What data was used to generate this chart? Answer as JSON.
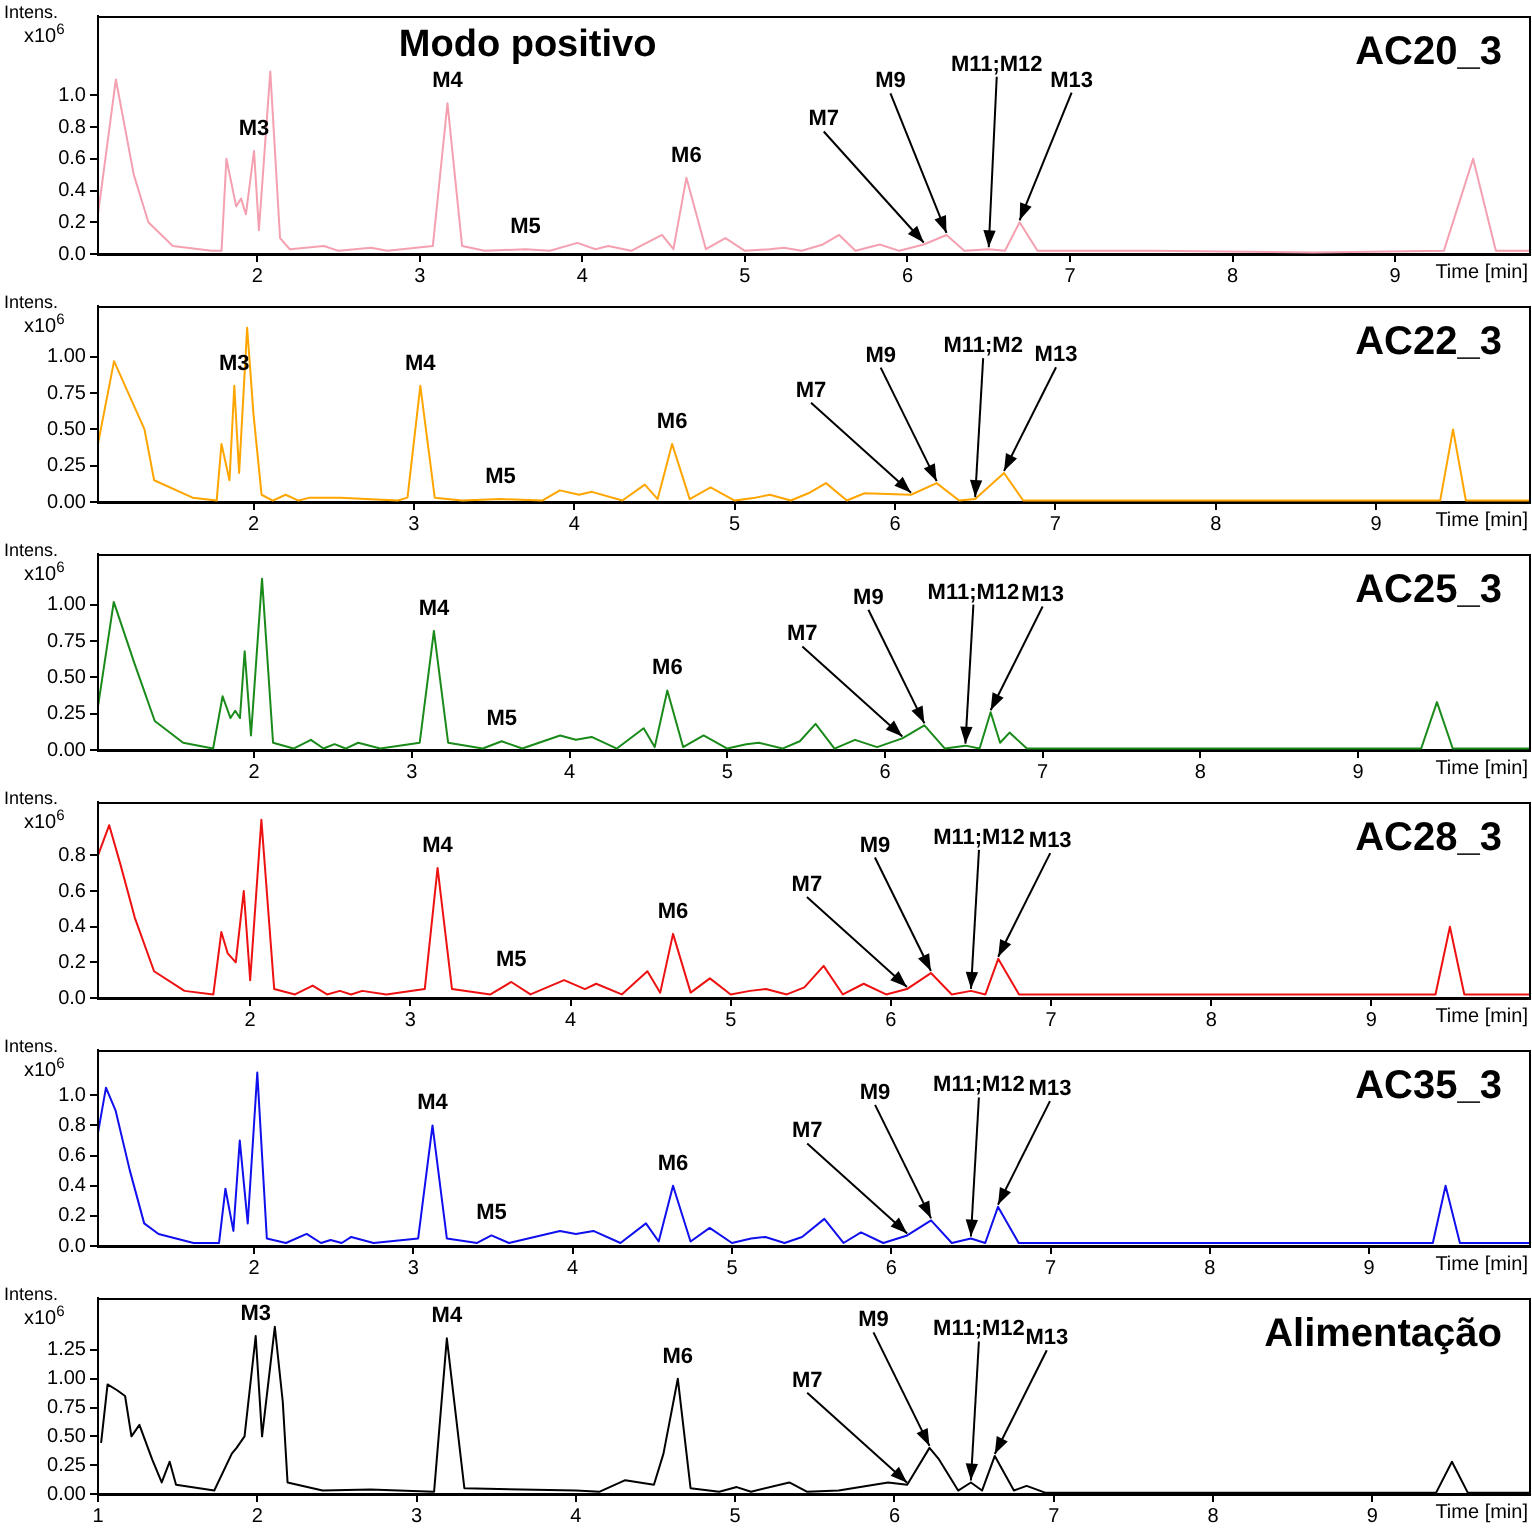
{
  "chart_data": [
    {
      "type": "line",
      "title": "AC20_3",
      "subtitle": "Modo positivo",
      "xlabel": "Time [min]",
      "ylabel": "Intens. x10$^{6}$",
      "color": "#f4a0b0",
      "x": [
        1.02,
        1.13,
        1.24,
        1.33,
        1.48,
        1.72,
        1.78,
        1.81,
        1.87,
        1.9,
        1.93,
        1.98,
        2.01,
        2.08,
        2.14,
        2.2,
        2.41,
        2.5,
        2.7,
        2.8,
        3.08,
        3.17,
        3.26,
        3.4,
        3.65,
        3.8,
        3.97,
        4.08,
        4.16,
        4.3,
        4.49,
        4.56,
        4.64,
        4.76,
        4.88,
        5.0,
        5.15,
        5.24,
        5.35,
        5.48,
        5.58,
        5.68,
        5.83,
        5.95,
        6.1,
        6.24,
        6.35,
        6.5,
        6.6,
        6.69,
        6.8,
        7.5,
        8.5,
        9.3,
        9.48,
        9.62,
        9.83
      ],
      "values": [
        0.25,
        1.1,
        0.5,
        0.2,
        0.05,
        0.02,
        0.02,
        0.6,
        0.3,
        0.35,
        0.25,
        0.65,
        0.15,
        1.15,
        0.1,
        0.03,
        0.05,
        0.02,
        0.04,
        0.02,
        0.05,
        0.95,
        0.05,
        0.02,
        0.03,
        0.02,
        0.07,
        0.03,
        0.05,
        0.02,
        0.12,
        0.03,
        0.48,
        0.03,
        0.1,
        0.02,
        0.03,
        0.04,
        0.02,
        0.06,
        0.12,
        0.02,
        0.06,
        0.02,
        0.06,
        0.12,
        0.02,
        0.03,
        0.02,
        0.2,
        0.02,
        0.02,
        0.01,
        0.02,
        0.6,
        0.02,
        0.02
      ],
      "xlim": [
        1.02,
        9.83
      ],
      "xticks": [
        2,
        3,
        4,
        5,
        6,
        7,
        8,
        9
      ],
      "ylim": [
        0,
        1.5
      ],
      "yticks": [
        {
          "value": 0,
          "label": "0.0"
        },
        {
          "value": 0.2,
          "label": "0.2"
        },
        {
          "value": 0.4,
          "label": "0.4"
        },
        {
          "value": 0.6,
          "label": "0.6"
        },
        {
          "value": 0.8,
          "label": "0.8"
        },
        {
          "value": 1,
          "label": "1.0"
        }
      ],
      "annotations": [
        {
          "text": "M3",
          "x": 1.98,
          "y": 0.65
        },
        {
          "text": "M4",
          "x": 3.17,
          "y": 0.95
        },
        {
          "text": "M5",
          "x": 3.65,
          "y": 0.03
        },
        {
          "text": "M6",
          "x": 4.64,
          "y": 0.48
        },
        {
          "text": "M7",
          "x": 6.1,
          "y": 0.06
        },
        {
          "text": "M9",
          "x": 6.24,
          "y": 0.12
        },
        {
          "text": "M11;M12",
          "x": 6.5,
          "y": 0.03
        },
        {
          "text": "M13",
          "x": 6.69,
          "y": 0.2
        }
      ]
    },
    {
      "type": "line",
      "title": "AC22_3",
      "xlabel": "Time [min]",
      "ylabel": "Intens. x10$^{6}$",
      "color": "#ffa500",
      "x": [
        1.03,
        1.13,
        1.32,
        1.38,
        1.62,
        1.77,
        1.8,
        1.85,
        1.88,
        1.91,
        1.96,
        2.0,
        2.05,
        2.12,
        2.2,
        2.28,
        2.35,
        2.54,
        2.9,
        2.96,
        3.04,
        3.13,
        3.3,
        3.54,
        3.8,
        3.91,
        4.03,
        4.11,
        4.3,
        4.44,
        4.52,
        4.61,
        4.72,
        4.85,
        5.0,
        5.13,
        5.22,
        5.35,
        5.46,
        5.57,
        5.7,
        5.81,
        6.1,
        6.26,
        6.4,
        6.5,
        6.68,
        6.8,
        7.5,
        8.5,
        9.4,
        9.48,
        9.56,
        9.96
      ],
      "values": [
        0.4,
        0.97,
        0.5,
        0.15,
        0.03,
        0.01,
        0.4,
        0.15,
        0.8,
        0.2,
        1.2,
        0.6,
        0.05,
        0.01,
        0.05,
        0.01,
        0.03,
        0.03,
        0.01,
        0.03,
        0.8,
        0.03,
        0.01,
        0.02,
        0.01,
        0.08,
        0.05,
        0.07,
        0.01,
        0.12,
        0.02,
        0.4,
        0.02,
        0.1,
        0.01,
        0.03,
        0.05,
        0.01,
        0.06,
        0.13,
        0.01,
        0.06,
        0.05,
        0.13,
        0.01,
        0.02,
        0.2,
        0.01,
        0.01,
        0.01,
        0.01,
        0.5,
        0.01,
        0.01
      ],
      "xlim": [
        1.03,
        9.96
      ],
      "xticks": [
        2,
        3,
        4,
        5,
        6,
        7,
        8,
        9
      ],
      "ylim": [
        0,
        1.35
      ],
      "yticks": [
        {
          "value": 0,
          "label": "0.00"
        },
        {
          "value": 0.25,
          "label": "0.25"
        },
        {
          "value": 0.5,
          "label": "0.50"
        },
        {
          "value": 0.75,
          "label": "0.75"
        },
        {
          "value": 1,
          "label": "1.00"
        }
      ],
      "annotations": [
        {
          "text": "M3",
          "x": 1.88,
          "y": 0.8
        },
        {
          "text": "M4",
          "x": 3.04,
          "y": 0.8
        },
        {
          "text": "M5",
          "x": 3.54,
          "y": 0.02
        },
        {
          "text": "M6",
          "x": 4.61,
          "y": 0.4
        },
        {
          "text": "M7",
          "x": 6.1,
          "y": 0.05
        },
        {
          "text": "M9",
          "x": 6.26,
          "y": 0.13
        },
        {
          "text": "M11;M2",
          "x": 6.5,
          "y": 0.02
        },
        {
          "text": "M13",
          "x": 6.68,
          "y": 0.2
        }
      ]
    },
    {
      "type": "line",
      "title": "AC25_3",
      "xlabel": "Time [min]",
      "ylabel": "Intens. x10$^{6}$",
      "color": "#1a8a1a",
      "x": [
        1.01,
        1.11,
        1.24,
        1.37,
        1.55,
        1.74,
        1.8,
        1.85,
        1.88,
        1.91,
        1.94,
        1.98,
        2.05,
        2.12,
        2.25,
        2.36,
        2.44,
        2.51,
        2.58,
        2.66,
        2.8,
        3.05,
        3.14,
        3.23,
        3.45,
        3.57,
        3.7,
        3.94,
        4.04,
        4.14,
        4.3,
        4.47,
        4.54,
        4.62,
        4.72,
        4.85,
        5.0,
        5.12,
        5.2,
        5.35,
        5.46,
        5.56,
        5.68,
        5.81,
        5.95,
        6.11,
        6.25,
        6.38,
        6.51,
        6.6,
        6.67,
        6.73,
        6.79,
        6.9,
        7.8,
        8.8,
        9.4,
        9.5,
        9.6,
        10.09
      ],
      "values": [
        0.3,
        1.02,
        0.6,
        0.2,
        0.05,
        0.01,
        0.37,
        0.22,
        0.27,
        0.22,
        0.68,
        0.1,
        1.18,
        0.05,
        0.01,
        0.07,
        0.01,
        0.04,
        0.01,
        0.05,
        0.01,
        0.05,
        0.82,
        0.05,
        0.01,
        0.06,
        0.01,
        0.1,
        0.07,
        0.09,
        0.01,
        0.15,
        0.02,
        0.41,
        0.02,
        0.1,
        0.01,
        0.04,
        0.05,
        0.01,
        0.06,
        0.18,
        0.01,
        0.07,
        0.02,
        0.08,
        0.17,
        0.01,
        0.03,
        0.01,
        0.26,
        0.05,
        0.12,
        0.01,
        0.01,
        0.01,
        0.01,
        0.33,
        0.01,
        0.01
      ],
      "xlim": [
        1.01,
        10.09
      ],
      "xticks": [
        2,
        3,
        4,
        5,
        6,
        7,
        8,
        9
      ],
      "ylim": [
        0,
        1.35
      ],
      "yticks": [
        {
          "value": 0,
          "label": "0.00"
        },
        {
          "value": 0.25,
          "label": "0.25"
        },
        {
          "value": 0.5,
          "label": "0.50"
        },
        {
          "value": 0.75,
          "label": "0.75"
        },
        {
          "value": 1,
          "label": "1.00"
        }
      ],
      "annotations": [
        {
          "text": "M4",
          "x": 3.14,
          "y": 0.82
        },
        {
          "text": "M5",
          "x": 3.57,
          "y": 0.06
        },
        {
          "text": "M6",
          "x": 4.62,
          "y": 0.41
        },
        {
          "text": "M7",
          "x": 6.11,
          "y": 0.08
        },
        {
          "text": "M9",
          "x": 6.25,
          "y": 0.17
        },
        {
          "text": "M11;M12",
          "x": 6.51,
          "y": 0.03
        },
        {
          "text": "M13",
          "x": 6.67,
          "y": 0.26
        }
      ]
    },
    {
      "type": "line",
      "title": "AC28_3",
      "xlabel": "Time [min]",
      "ylabel": "Intens. x10$^{6}$",
      "color": "#ee1111",
      "x": [
        1.05,
        1.12,
        1.19,
        1.28,
        1.4,
        1.59,
        1.77,
        1.82,
        1.86,
        1.91,
        1.96,
        2.0,
        2.07,
        2.15,
        2.28,
        2.39,
        2.48,
        2.56,
        2.63,
        2.7,
        2.85,
        3.09,
        3.17,
        3.26,
        3.5,
        3.63,
        3.75,
        3.96,
        4.09,
        4.16,
        4.32,
        4.48,
        4.56,
        4.64,
        4.75,
        4.87,
        5.0,
        5.12,
        5.22,
        5.35,
        5.46,
        5.58,
        5.7,
        5.83,
        5.97,
        6.1,
        6.25,
        6.38,
        6.5,
        6.59,
        6.67,
        6.8,
        7.8,
        8.8,
        9.4,
        9.49,
        9.58,
        9.99
      ],
      "values": [
        0.8,
        0.97,
        0.75,
        0.45,
        0.15,
        0.04,
        0.02,
        0.37,
        0.25,
        0.2,
        0.6,
        0.1,
        1.0,
        0.05,
        0.02,
        0.07,
        0.02,
        0.04,
        0.02,
        0.04,
        0.02,
        0.05,
        0.73,
        0.05,
        0.02,
        0.09,
        0.02,
        0.1,
        0.05,
        0.08,
        0.02,
        0.15,
        0.03,
        0.36,
        0.03,
        0.11,
        0.02,
        0.04,
        0.05,
        0.02,
        0.06,
        0.18,
        0.02,
        0.08,
        0.02,
        0.05,
        0.14,
        0.02,
        0.04,
        0.02,
        0.22,
        0.02,
        0.02,
        0.02,
        0.02,
        0.4,
        0.02,
        0.02
      ],
      "xlim": [
        1.05,
        9.99
      ],
      "xticks": [
        2,
        3,
        4,
        5,
        6,
        7,
        8,
        9
      ],
      "ylim": [
        0,
        1.1
      ],
      "yticks": [
        {
          "value": 0,
          "label": "0.0"
        },
        {
          "value": 0.2,
          "label": "0.2"
        },
        {
          "value": 0.4,
          "label": "0.4"
        },
        {
          "value": 0.6,
          "label": "0.6"
        },
        {
          "value": 0.8,
          "label": "0.8"
        }
      ],
      "annotations": [
        {
          "text": "M4",
          "x": 3.17,
          "y": 0.73
        },
        {
          "text": "M5",
          "x": 3.63,
          "y": 0.09
        },
        {
          "text": "M6",
          "x": 4.64,
          "y": 0.36
        },
        {
          "text": "M7",
          "x": 6.1,
          "y": 0.05
        },
        {
          "text": "M9",
          "x": 6.25,
          "y": 0.14
        },
        {
          "text": "M11;M12",
          "x": 6.5,
          "y": 0.04
        },
        {
          "text": "M13",
          "x": 6.67,
          "y": 0.22
        }
      ]
    },
    {
      "type": "line",
      "title": "AC35_3",
      "xlabel": "Time [min]",
      "ylabel": "Intens. x10$^{6}$",
      "color": "#1010ee",
      "x": [
        1.02,
        1.07,
        1.13,
        1.22,
        1.31,
        1.4,
        1.62,
        1.78,
        1.82,
        1.87,
        1.91,
        1.96,
        2.02,
        2.08,
        2.2,
        2.33,
        2.42,
        2.48,
        2.55,
        2.61,
        2.75,
        3.03,
        3.12,
        3.21,
        3.4,
        3.49,
        3.6,
        3.92,
        4.02,
        4.13,
        4.3,
        4.46,
        4.54,
        4.63,
        4.74,
        4.86,
        5.0,
        5.12,
        5.21,
        5.33,
        5.44,
        5.58,
        5.7,
        5.81,
        5.95,
        6.1,
        6.25,
        6.38,
        6.5,
        6.59,
        6.67,
        6.8,
        7.8,
        8.8,
        9.4,
        9.48,
        9.57,
        10.01
      ],
      "values": [
        0.75,
        1.05,
        0.9,
        0.5,
        0.15,
        0.08,
        0.02,
        0.02,
        0.38,
        0.1,
        0.7,
        0.15,
        1.15,
        0.05,
        0.02,
        0.08,
        0.02,
        0.04,
        0.02,
        0.06,
        0.02,
        0.05,
        0.8,
        0.05,
        0.02,
        0.07,
        0.02,
        0.1,
        0.08,
        0.1,
        0.02,
        0.15,
        0.03,
        0.4,
        0.03,
        0.12,
        0.02,
        0.05,
        0.06,
        0.02,
        0.06,
        0.18,
        0.02,
        0.09,
        0.02,
        0.07,
        0.17,
        0.02,
        0.05,
        0.02,
        0.26,
        0.02,
        0.02,
        0.02,
        0.02,
        0.4,
        0.02,
        0.02
      ],
      "xlim": [
        1.02,
        10.01
      ],
      "xticks": [
        2,
        3,
        4,
        5,
        6,
        7,
        8,
        9
      ],
      "ylim": [
        0,
        1.3
      ],
      "yticks": [
        {
          "value": 0,
          "label": "0.0"
        },
        {
          "value": 0.2,
          "label": "0.2"
        },
        {
          "value": 0.4,
          "label": "0.4"
        },
        {
          "value": 0.6,
          "label": "0.6"
        },
        {
          "value": 0.8,
          "label": "0.8"
        },
        {
          "value": 1,
          "label": "1.0"
        }
      ],
      "annotations": [
        {
          "text": "M4",
          "x": 3.12,
          "y": 0.8
        },
        {
          "text": "M5",
          "x": 3.49,
          "y": 0.07
        },
        {
          "text": "M6",
          "x": 4.63,
          "y": 0.4
        },
        {
          "text": "M7",
          "x": 6.1,
          "y": 0.07
        },
        {
          "text": "M9",
          "x": 6.25,
          "y": 0.17
        },
        {
          "text": "M11;M12",
          "x": 6.5,
          "y": 0.05
        },
        {
          "text": "M13",
          "x": 6.67,
          "y": 0.26
        }
      ]
    },
    {
      "type": "line",
      "title": "Alimentação",
      "xlabel": "Time [min]",
      "ylabel": "Intens. x10$^{6}$",
      "color": "#000000",
      "x": [
        1.02,
        1.06,
        1.12,
        1.17,
        1.21,
        1.26,
        1.34,
        1.4,
        1.45,
        1.49,
        1.73,
        1.84,
        1.87,
        1.92,
        1.99,
        2.03,
        2.11,
        2.16,
        2.19,
        2.41,
        2.71,
        3.11,
        3.19,
        3.3,
        4.0,
        4.15,
        4.31,
        4.49,
        4.55,
        4.64,
        4.72,
        4.9,
        5.01,
        5.1,
        5.34,
        5.45,
        5.65,
        5.96,
        6.08,
        6.22,
        6.28,
        6.4,
        6.48,
        6.55,
        6.63,
        6.75,
        6.83,
        6.95,
        8.0,
        9.4,
        9.5,
        9.6,
        9.99
      ],
      "values": [
        0.45,
        0.95,
        0.9,
        0.85,
        0.5,
        0.6,
        0.3,
        0.1,
        0.28,
        0.08,
        0.03,
        0.35,
        0.4,
        0.5,
        1.37,
        0.5,
        1.45,
        0.8,
        0.1,
        0.03,
        0.04,
        0.02,
        1.35,
        0.05,
        0.03,
        0.02,
        0.12,
        0.08,
        0.35,
        1.0,
        0.05,
        0.02,
        0.06,
        0.02,
        0.1,
        0.02,
        0.03,
        0.1,
        0.08,
        0.4,
        0.3,
        0.03,
        0.1,
        0.03,
        0.33,
        0.03,
        0.07,
        0.01,
        0.01,
        0.01,
        0.28,
        0.01,
        0.01
      ],
      "xlim": [
        1,
        9.99
      ],
      "xticks": [
        1,
        2,
        3,
        4,
        5,
        6,
        7,
        8,
        9
      ],
      "ylim": [
        0,
        1.7
      ],
      "yticks": [
        {
          "value": 0,
          "label": "0.00"
        },
        {
          "value": 0.25,
          "label": "0.25"
        },
        {
          "value": 0.5,
          "label": "0.50"
        },
        {
          "value": 0.75,
          "label": "0.75"
        },
        {
          "value": 1,
          "label": "1.00"
        },
        {
          "value": 1.25,
          "label": "1.25"
        }
      ],
      "annotations": [
        {
          "text": "M3",
          "x": 1.99,
          "y": 1.37
        },
        {
          "text": "M4",
          "x": 3.19,
          "y": 1.35
        },
        {
          "text": "M6",
          "x": 4.64,
          "y": 1.0
        },
        {
          "text": "M7",
          "x": 6.08,
          "y": 0.08
        },
        {
          "text": "M9",
          "x": 6.22,
          "y": 0.4
        },
        {
          "text": "M11;M12",
          "x": 6.48,
          "y": 0.1
        },
        {
          "text": "M13",
          "x": 6.63,
          "y": 0.33
        }
      ]
    }
  ]
}
